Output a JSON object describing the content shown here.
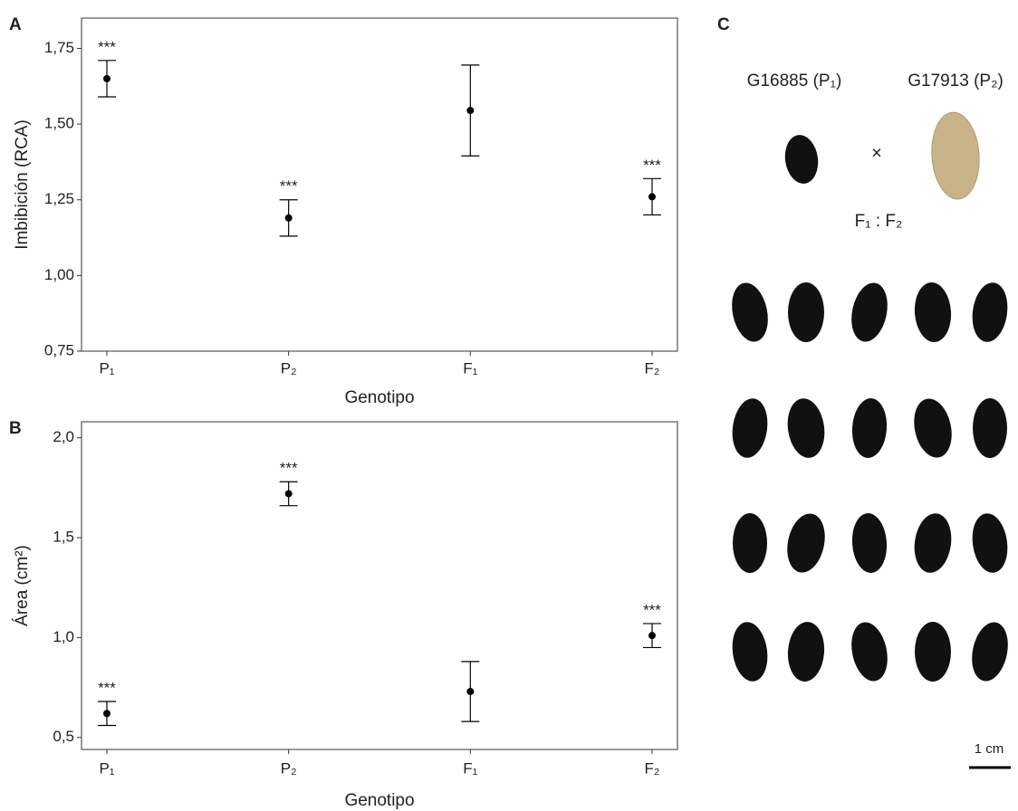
{
  "chart_data": [
    {
      "type": "errorbar",
      "panel_label": "A",
      "y_label": "Imbibición (RCA)",
      "x_label": "Genotipo",
      "categories": [
        "P₁",
        "P₂",
        "F₁",
        "F₂"
      ],
      "values": [
        1.65,
        1.19,
        1.545,
        1.26
      ],
      "errors": [
        0.06,
        0.06,
        0.15,
        0.06
      ],
      "significance": [
        "***",
        "***",
        null,
        "***"
      ],
      "color": "#000000",
      "ylim": [
        0.75,
        1.85
      ],
      "yticks": [
        {
          "value": 0.75,
          "label": "0,75"
        },
        {
          "value": 1.0,
          "label": "1,00"
        },
        {
          "value": 1.25,
          "label": "1,25"
        },
        {
          "value": 1.5,
          "label": "1,50"
        },
        {
          "value": 1.75,
          "label": "1,75"
        }
      ],
      "grid": false
    },
    {
      "type": "errorbar",
      "panel_label": "B",
      "y_label": "Área (cm²)",
      "x_label": "Genotipo",
      "categories": [
        "P₁",
        "P₂",
        "F₁",
        "F₂"
      ],
      "values": [
        0.62,
        1.72,
        0.73,
        1.01
      ],
      "errors": [
        0.06,
        0.06,
        0.15,
        0.06
      ],
      "significance": [
        "***",
        "***",
        null,
        "***"
      ],
      "color": "#000000",
      "ylim": [
        0.44,
        2.08
      ],
      "yticks": [
        {
          "value": 0.5,
          "label": "0,5"
        },
        {
          "value": 1.0,
          "label": "1,0"
        },
        {
          "value": 1.5,
          "label": "1,5"
        },
        {
          "value": 2.0,
          "label": "2,0"
        }
      ],
      "grid": false
    }
  ],
  "photo_panel": {
    "panel_label": "C",
    "parent_1": "G16885 (P₁)",
    "parent_2": "G17913 (P₂)",
    "cross": "×",
    "progeny": "F₁ : F₂",
    "scale": "1 cm"
  }
}
